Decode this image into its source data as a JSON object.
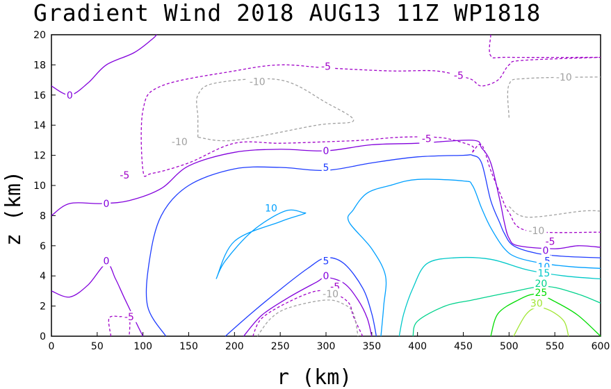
{
  "chart_data": {
    "type": "contour",
    "title": "Gradient Wind 2018 AUG13 11Z   WP1818",
    "xlabel": "r (km)",
    "ylabel": "z (km)",
    "xlim": [
      0,
      600
    ],
    "ylim": [
      0,
      20
    ],
    "x_ticks": [
      "0",
      "50",
      "100",
      "150",
      "200",
      "250",
      "300",
      "350",
      "400",
      "450",
      "500",
      "550",
      "600"
    ],
    "y_ticks": [
      "0",
      "2",
      "4",
      "6",
      "8",
      "10",
      "12",
      "14",
      "16",
      "18",
      "20"
    ],
    "levels": [
      {
        "value": -10,
        "label": "-10",
        "color": "#a0a0a0",
        "dashed": true
      },
      {
        "value": -5,
        "label": "-5",
        "color": "#a000c8",
        "dashed": true
      },
      {
        "value": 0,
        "label": "0",
        "color": "#8200dc",
        "dashed": false
      },
      {
        "value": 5,
        "label": "5",
        "color": "#1e3cff",
        "dashed": false
      },
      {
        "value": 10,
        "label": "10",
        "color": "#00a0ff",
        "dashed": false
      },
      {
        "value": 15,
        "label": "15",
        "color": "#00c8c8",
        "dashed": false
      },
      {
        "value": 20,
        "label": "20",
        "color": "#00d28c",
        "dashed": false
      },
      {
        "value": 25,
        "label": "25",
        "color": "#00dc00",
        "dashed": false
      },
      {
        "value": 30,
        "label": "30",
        "color": "#a0e632",
        "dashed": false
      }
    ],
    "contours": [
      {
        "level": 0,
        "points": [
          [
            0,
            16.6
          ],
          [
            20,
            16.0
          ],
          [
            40,
            16.8
          ],
          [
            60,
            18.0
          ],
          [
            90,
            18.8
          ],
          [
            110,
            19.7
          ],
          [
            115,
            20
          ]
        ]
      },
      {
        "level": -5,
        "points": [
          [
            480,
            20
          ],
          [
            480,
            18.6
          ],
          [
            500,
            18.5
          ],
          [
            600,
            18.5
          ]
        ]
      },
      {
        "level": -5,
        "points": [
          [
            460,
            12.2
          ],
          [
            460,
            12.6
          ],
          [
            440,
            13
          ],
          [
            420,
            13.2
          ],
          [
            380,
            13.2
          ],
          [
            340,
            13.0
          ],
          [
            300,
            12.9
          ],
          [
            250,
            12.8
          ],
          [
            200,
            12.8
          ],
          [
            150,
            11.5
          ],
          [
            110,
            10.8
          ],
          [
            100,
            11
          ],
          [
            100,
            15
          ],
          [
            120,
            16.6
          ],
          [
            200,
            17.6
          ],
          [
            250,
            18
          ],
          [
            300,
            17.8
          ],
          [
            370,
            17.6
          ],
          [
            420,
            17.6
          ],
          [
            450,
            17.2
          ],
          [
            460,
            17.0
          ],
          [
            470,
            16.6
          ],
          [
            488,
            17.0
          ],
          [
            500,
            18.0
          ],
          [
            515,
            18.3
          ],
          [
            600,
            18.5
          ]
        ]
      },
      {
        "level": -5,
        "points": [
          [
            460,
            12.2
          ],
          [
            470,
            12.7
          ],
          [
            480,
            11.0
          ],
          [
            490,
            9.5
          ],
          [
            500,
            8.2
          ],
          [
            520,
            7.0
          ],
          [
            600,
            6.9
          ]
        ]
      },
      {
        "level": -10,
        "points": [
          [
            160,
            13.2
          ],
          [
            160,
            14.5
          ],
          [
            160,
            16
          ],
          [
            180,
            16.8
          ],
          [
            250,
            17
          ],
          [
            300,
            15.5
          ],
          [
            330,
            14.3
          ],
          [
            290,
            14
          ],
          [
            200,
            13
          ],
          [
            160,
            13.2
          ]
        ]
      },
      {
        "level": -10,
        "points": [
          [
            500,
            8.6
          ],
          [
            520,
            7.9
          ],
          [
            580,
            8.3
          ],
          [
            600,
            8.3
          ]
        ]
      },
      {
        "level": -10,
        "points": [
          [
            500,
            14.5
          ],
          [
            500,
            16.7
          ],
          [
            520,
            17.1
          ],
          [
            600,
            17.2
          ]
        ]
      },
      {
        "level": 0,
        "points": [
          [
            0,
            8.0
          ],
          [
            20,
            8.8
          ],
          [
            55,
            8.8
          ],
          [
            85,
            9.0
          ],
          [
            120,
            9.8
          ],
          [
            150,
            11.3
          ],
          [
            200,
            12.2
          ],
          [
            250,
            12.4
          ],
          [
            300,
            12.3
          ],
          [
            350,
            12.7
          ],
          [
            400,
            12.8
          ],
          [
            460,
            13.0
          ],
          [
            470,
            12.5
          ],
          [
            480,
            11.5
          ],
          [
            490,
            9.0
          ],
          [
            495,
            7.5
          ],
          [
            500,
            6.5
          ],
          [
            510,
            6.0
          ],
          [
            550,
            5.8
          ],
          [
            575,
            6.0
          ],
          [
            600,
            5.9
          ]
        ]
      },
      {
        "level": 5,
        "points": [
          [
            125,
            0
          ],
          [
            105,
            2
          ],
          [
            107,
            5
          ],
          [
            120,
            8
          ],
          [
            150,
            10
          ],
          [
            200,
            11.1
          ],
          [
            250,
            11.2
          ],
          [
            300,
            11.0
          ],
          [
            350,
            11.5
          ],
          [
            400,
            11.9
          ],
          [
            450,
            12.0
          ],
          [
            460,
            12.0
          ],
          [
            470,
            11.5
          ],
          [
            480,
            9.0
          ],
          [
            490,
            7.5
          ],
          [
            495,
            6.8
          ],
          [
            505,
            6.0
          ],
          [
            530,
            5.5
          ],
          [
            560,
            5.3
          ],
          [
            600,
            5.2
          ]
        ]
      },
      {
        "level": 0,
        "points": [
          [
            0,
            3.0
          ],
          [
            20,
            2.6
          ],
          [
            40,
            3.4
          ],
          [
            60,
            4.8
          ],
          [
            70,
            3.8
          ],
          [
            80,
            2.5
          ],
          [
            95,
            0.6
          ],
          [
            100,
            0
          ]
        ]
      },
      {
        "level": -5,
        "points": [
          [
            65,
            0
          ],
          [
            63,
            1.2
          ],
          [
            75,
            1.3
          ],
          [
            85,
            1.2
          ],
          [
            85,
            0
          ]
        ]
      },
      {
        "level": 10,
        "points": [
          [
            180,
            3.8
          ],
          [
            200,
            6.3
          ],
          [
            250,
            7.6
          ],
          [
            275,
            8.1
          ],
          [
            275,
            8.2
          ],
          [
            255,
            8.3
          ],
          [
            220,
            7.0
          ],
          [
            190,
            5.0
          ],
          [
            180,
            3.8
          ]
        ]
      },
      {
        "level": 5,
        "points": [
          [
            190,
            0
          ],
          [
            220,
            1.6
          ],
          [
            250,
            3.1
          ],
          [
            280,
            4.5
          ],
          [
            300,
            5.2
          ],
          [
            320,
            4.8
          ],
          [
            340,
            3.2
          ],
          [
            350,
            1.5
          ],
          [
            355,
            0
          ]
        ]
      },
      {
        "level": 0,
        "points": [
          [
            210,
            0
          ],
          [
            230,
            1.4
          ],
          [
            260,
            2.6
          ],
          [
            290,
            3.6
          ],
          [
            300,
            3.9
          ],
          [
            320,
            3.5
          ],
          [
            335,
            2.4
          ],
          [
            345,
            1.2
          ],
          [
            350,
            0
          ]
        ]
      },
      {
        "level": -5,
        "points": [
          [
            220,
            0
          ],
          [
            230,
            1.2
          ],
          [
            260,
            2.3
          ],
          [
            290,
            3.0
          ],
          [
            310,
            2.8
          ],
          [
            325,
            2.2
          ],
          [
            330,
            1.3
          ],
          [
            340,
            0
          ]
        ]
      },
      {
        "level": -10,
        "points": [
          [
            225,
            0
          ],
          [
            240,
            1.2
          ],
          [
            260,
            1.9
          ],
          [
            300,
            2.4
          ],
          [
            320,
            2.1
          ],
          [
            330,
            1.5
          ],
          [
            335,
            0
          ]
        ]
      },
      {
        "level": 10,
        "points": [
          [
            360,
            0
          ],
          [
            363,
            2
          ],
          [
            365,
            4
          ],
          [
            350,
            5.8
          ],
          [
            325,
            7.6
          ],
          [
            330,
            8.4
          ],
          [
            345,
            9.5
          ],
          [
            370,
            10.0
          ],
          [
            400,
            10.4
          ],
          [
            450,
            10.3
          ],
          [
            460,
            10.0
          ],
          [
            470,
            8.5
          ],
          [
            480,
            7.2
          ],
          [
            495,
            5.8
          ],
          [
            510,
            5.2
          ],
          [
            540,
            4.8
          ],
          [
            570,
            4.6
          ],
          [
            600,
            4.5
          ]
        ]
      },
      {
        "level": 15,
        "points": [
          [
            380,
            0
          ],
          [
            385,
            1.5
          ],
          [
            395,
            3.2
          ],
          [
            410,
            4.8
          ],
          [
            440,
            5.2
          ],
          [
            480,
            5.1
          ],
          [
            520,
            4.4
          ],
          [
            560,
            4.0
          ],
          [
            600,
            3.8
          ]
        ]
      },
      {
        "level": 20,
        "points": [
          [
            395,
            0
          ],
          [
            400,
            1
          ],
          [
            430,
            2
          ],
          [
            460,
            2.4
          ],
          [
            500,
            2.9
          ],
          [
            540,
            3.3
          ],
          [
            575,
            2.8
          ],
          [
            600,
            2.2
          ]
        ]
      },
      {
        "level": 25,
        "points": [
          [
            480,
            0
          ],
          [
            488,
            1.5
          ],
          [
            510,
            2.4
          ],
          [
            530,
            2.8
          ],
          [
            550,
            2.3
          ],
          [
            575,
            1.4
          ],
          [
            600,
            0
          ]
        ]
      },
      {
        "level": 30,
        "points": [
          [
            505,
            0
          ],
          [
            518,
            1.4
          ],
          [
            530,
            1.9
          ],
          [
            545,
            1.7
          ],
          [
            560,
            1.0
          ],
          [
            565,
            0
          ]
        ]
      }
    ],
    "contour_labels": [
      {
        "text": "0",
        "x": 20,
        "y": 16.0,
        "level": 0
      },
      {
        "text": "-5",
        "x": 300,
        "y": 17.9,
        "level": -5
      },
      {
        "text": "-5",
        "x": 445,
        "y": 17.3,
        "level": -5
      },
      {
        "text": "-10",
        "x": 225,
        "y": 16.9,
        "level": -10
      },
      {
        "text": "-10",
        "x": 560,
        "y": 17.2,
        "level": -10
      },
      {
        "text": "-10",
        "x": 140,
        "y": 12.9,
        "level": -10
      },
      {
        "text": "-5",
        "x": 410,
        "y": 13.1,
        "level": -5
      },
      {
        "text": "-5",
        "x": 80,
        "y": 10.7,
        "level": -5
      },
      {
        "text": "0",
        "x": 300,
        "y": 12.3,
        "level": 0
      },
      {
        "text": "5",
        "x": 300,
        "y": 11.2,
        "level": 5
      },
      {
        "text": "0",
        "x": 60,
        "y": 8.8,
        "level": 0
      },
      {
        "text": "10",
        "x": 240,
        "y": 8.5,
        "level": 10
      },
      {
        "text": "-10",
        "x": 530,
        "y": 7.0,
        "level": -10
      },
      {
        "text": "-5",
        "x": 545,
        "y": 6.3,
        "level": -5
      },
      {
        "text": "0",
        "x": 540,
        "y": 5.7,
        "level": 0
      },
      {
        "text": "5",
        "x": 542,
        "y": 5.0,
        "level": 5
      },
      {
        "text": "0",
        "x": 60,
        "y": 5.0,
        "level": 0
      },
      {
        "text": "5",
        "x": 300,
        "y": 5.0,
        "level": 5
      },
      {
        "text": "0",
        "x": 300,
        "y": 4.0,
        "level": 0
      },
      {
        "text": "-5",
        "x": 310,
        "y": 3.3,
        "level": -5
      },
      {
        "text": "-10",
        "x": 305,
        "y": 2.8,
        "level": -10
      },
      {
        "text": "-5",
        "x": 85,
        "y": 1.3,
        "level": -5
      },
      {
        "text": "10",
        "x": 538,
        "y": 4.6,
        "level": 10
      },
      {
        "text": "15",
        "x": 538,
        "y": 4.2,
        "level": 15
      },
      {
        "text": "20",
        "x": 535,
        "y": 3.5,
        "level": 20
      },
      {
        "text": "25",
        "x": 535,
        "y": 2.9,
        "level": 25
      },
      {
        "text": "30",
        "x": 530,
        "y": 2.2,
        "level": 30
      }
    ]
  }
}
